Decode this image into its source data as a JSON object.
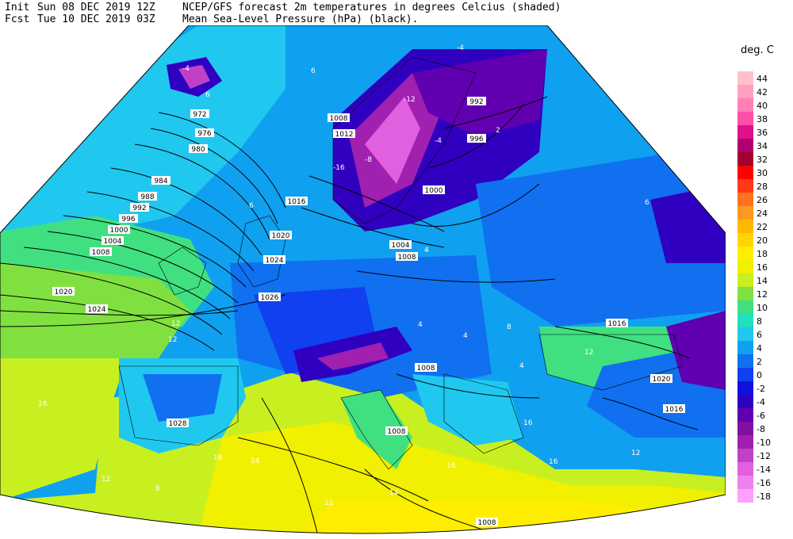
{
  "header": {
    "init_label": "Init",
    "init_value": "Sun 08 DEC 2019 12Z",
    "fcst_label": "Fcst",
    "fcst_value": "Tue 10 DEC 2019 03Z",
    "line1": "NCEP/GFS forecast 2m temperatures in degrees Celcius (shaded)",
    "line2": "Mean Sea-Level Pressure (hPa) (black)."
  },
  "legend": {
    "title": "deg. C",
    "items": [
      {
        "label": "44",
        "color": "#ffc0cb"
      },
      {
        "label": "42",
        "color": "#ffa0c0"
      },
      {
        "label": "40",
        "color": "#ff80b8"
      },
      {
        "label": "38",
        "color": "#ff50a8"
      },
      {
        "label": "36",
        "color": "#e0108c"
      },
      {
        "label": "34",
        "color": "#b0006e"
      },
      {
        "label": "32",
        "color": "#a00030"
      },
      {
        "label": "30",
        "color": "#ff0000"
      },
      {
        "label": "28",
        "color": "#ff3a1a"
      },
      {
        "label": "26",
        "color": "#ff7020"
      },
      {
        "label": "24",
        "color": "#ff9820"
      },
      {
        "label": "22",
        "color": "#ffb800"
      },
      {
        "label": "20",
        "color": "#ffd400"
      },
      {
        "label": "18",
        "color": "#ffee00"
      },
      {
        "label": "16",
        "color": "#f0f000"
      },
      {
        "label": "14",
        "color": "#c8f020"
      },
      {
        "label": "12",
        "color": "#80e040"
      },
      {
        "label": "10",
        "color": "#40e080"
      },
      {
        "label": "8",
        "color": "#20e0c0"
      },
      {
        "label": "6",
        "color": "#20c8f0"
      },
      {
        "label": "4",
        "color": "#10a0f0"
      },
      {
        "label": "2",
        "color": "#1070f0"
      },
      {
        "label": "0",
        "color": "#1040f0"
      },
      {
        "label": "-2",
        "color": "#1010e0"
      },
      {
        "label": "-4",
        "color": "#3000c0"
      },
      {
        "label": "-6",
        "color": "#6000b0"
      },
      {
        "label": "-8",
        "color": "#8010a0"
      },
      {
        "label": "-10",
        "color": "#a020b0"
      },
      {
        "label": "-12",
        "color": "#c040c8"
      },
      {
        "label": "-14",
        "color": "#e060e0"
      },
      {
        "label": "-16",
        "color": "#f080f0"
      },
      {
        "label": "-18",
        "color": "#ffa0ff"
      }
    ]
  },
  "map": {
    "isobar_labels": [
      {
        "text": "972"
      },
      {
        "text": "976"
      },
      {
        "text": "980"
      },
      {
        "text": "984"
      },
      {
        "text": "988"
      },
      {
        "text": "992"
      },
      {
        "text": "996"
      },
      {
        "text": "1000"
      },
      {
        "text": "1004"
      },
      {
        "text": "1008"
      },
      {
        "text": "1020"
      },
      {
        "text": "1024"
      },
      {
        "text": "1016"
      },
      {
        "text": "1020"
      },
      {
        "text": "1024"
      },
      {
        "text": "1008"
      },
      {
        "text": "1012"
      },
      {
        "text": "992"
      },
      {
        "text": "996"
      },
      {
        "text": "1000"
      },
      {
        "text": "1004"
      },
      {
        "text": "1008"
      },
      {
        "text": "1026"
      },
      {
        "text": "1028"
      },
      {
        "text": "1008"
      },
      {
        "text": "1008"
      },
      {
        "text": "1008"
      },
      {
        "text": "1016"
      },
      {
        "text": "1020"
      },
      {
        "text": "1016"
      }
    ],
    "temp_labels": [
      {
        "text": "-4"
      },
      {
        "text": "-12"
      },
      {
        "text": "-4"
      },
      {
        "text": "-16"
      },
      {
        "text": "-8"
      },
      {
        "text": "-4"
      },
      {
        "text": "6"
      },
      {
        "text": "6"
      },
      {
        "text": "6"
      },
      {
        "text": "12"
      },
      {
        "text": "12"
      },
      {
        "text": "12"
      },
      {
        "text": "16"
      },
      {
        "text": "16"
      },
      {
        "text": "14"
      },
      {
        "text": "16"
      },
      {
        "text": "12"
      },
      {
        "text": "12"
      },
      {
        "text": "8"
      },
      {
        "text": "4"
      },
      {
        "text": "4"
      },
      {
        "text": "4"
      },
      {
        "text": "4"
      },
      {
        "text": "16"
      },
      {
        "text": "16"
      },
      {
        "text": "12"
      },
      {
        "text": "8"
      },
      {
        "text": "14"
      },
      {
        "text": "2"
      },
      {
        "text": "6"
      }
    ]
  }
}
